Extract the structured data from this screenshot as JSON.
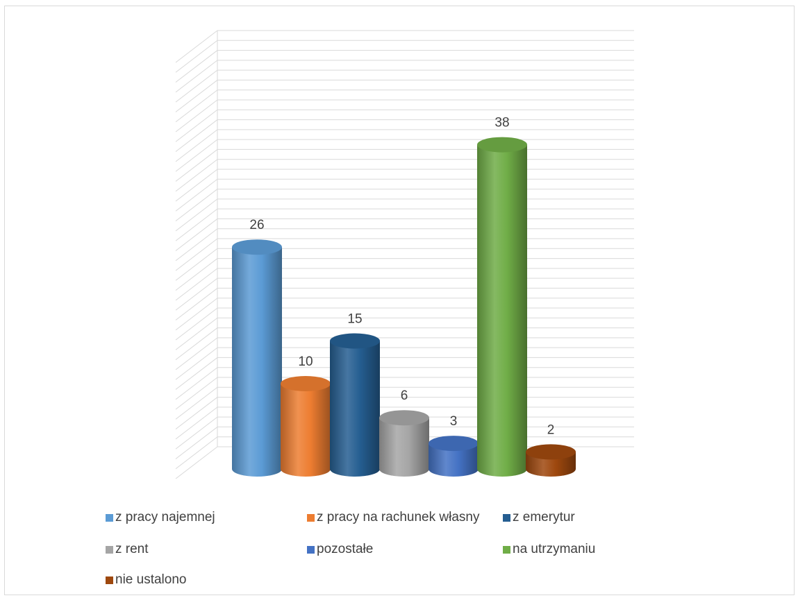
{
  "chart_data": {
    "type": "bar",
    "style": "3d-cylinder",
    "categories": [
      "z pracy najemnej",
      "z pracy na rachunek własny",
      "z emerytur",
      "z rent",
      "pozostałe",
      "na utrzymaniu",
      "nie ustalono"
    ],
    "values": [
      26,
      10,
      15,
      6,
      3,
      38,
      2
    ],
    "colors": [
      "#5b9bd5",
      "#ed7d31",
      "#255e91",
      "#a5a5a5",
      "#4472c4",
      "#70ad47",
      "#9e480e"
    ],
    "data_labels": [
      "26",
      "10",
      "15",
      "6",
      "3",
      "38",
      "2"
    ],
    "title": "",
    "xlabel": "",
    "ylabel": "",
    "ylim": [
      0,
      52
    ],
    "grid": true,
    "legend_position": "bottom"
  },
  "legend": {
    "items": [
      {
        "label": "z pracy najemnej",
        "color": "#5b9bd5"
      },
      {
        "label": "z pracy na rachunek własny",
        "color": "#ed7d31"
      },
      {
        "label": "z emerytur",
        "color": "#255e91"
      },
      {
        "label": "z rent",
        "color": "#a5a5a5"
      },
      {
        "label": "pozostałe",
        "color": "#4472c4"
      },
      {
        "label": "na utrzymaniu",
        "color": "#70ad47"
      },
      {
        "label": "nie ustalono",
        "color": "#9e480e"
      }
    ]
  }
}
